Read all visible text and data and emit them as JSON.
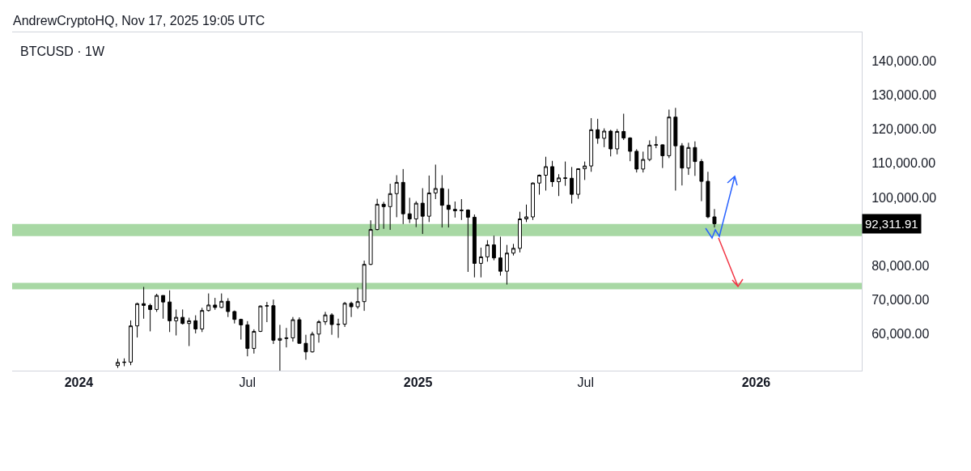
{
  "chart_data": {
    "type": "candlestick",
    "title": "BTCUSD · 1W",
    "annotations": [
      "AndrewCryptoHQ, Nov 17, 2025 19:05 UTC",
      "92,311.91"
    ],
    "color": "#000000",
    "x": [
      "2024-02-12",
      "2024-02-19",
      "2024-02-26",
      "2024-03-04",
      "2024-03-11",
      "2024-03-18",
      "2024-03-25",
      "2024-04-01",
      "2024-04-08",
      "2024-04-15",
      "2024-04-22",
      "2024-04-29",
      "2024-05-06",
      "2024-05-13",
      "2024-05-20",
      "2024-05-27",
      "2024-06-03",
      "2024-06-10",
      "2024-06-17",
      "2024-06-24",
      "2024-07-01",
      "2024-07-08",
      "2024-07-15",
      "2024-07-22",
      "2024-07-29",
      "2024-08-05",
      "2024-08-12",
      "2024-08-19",
      "2024-08-26",
      "2024-09-02",
      "2024-09-09",
      "2024-09-16",
      "2024-09-23",
      "2024-09-30",
      "2024-10-07",
      "2024-10-14",
      "2024-10-21",
      "2024-10-28",
      "2024-11-04",
      "2024-11-11",
      "2024-11-18",
      "2024-11-25",
      "2024-12-02",
      "2024-12-09",
      "2024-12-16",
      "2024-12-23",
      "2024-12-30",
      "2025-01-06",
      "2025-01-13",
      "2025-01-20",
      "2025-01-27",
      "2025-02-03",
      "2025-02-10",
      "2025-02-17",
      "2025-02-24",
      "2025-03-03",
      "2025-03-10",
      "2025-03-17",
      "2025-03-24",
      "2025-03-31",
      "2025-04-07",
      "2025-04-14",
      "2025-04-21",
      "2025-04-28",
      "2025-05-05",
      "2025-05-12",
      "2025-05-19",
      "2025-05-26",
      "2025-06-02",
      "2025-06-09",
      "2025-06-16",
      "2025-06-23",
      "2025-06-30",
      "2025-07-07",
      "2025-07-14",
      "2025-07-21",
      "2025-07-28",
      "2025-08-04",
      "2025-08-11",
      "2025-08-18",
      "2025-08-25",
      "2025-09-01",
      "2025-09-08",
      "2025-09-15",
      "2025-09-22",
      "2025-09-29",
      "2025-10-06",
      "2025-10-13",
      "2025-10-20",
      "2025-10-27",
      "2025-11-03",
      "2025-11-10",
      "2025-11-17"
    ],
    "ohlc": [
      [
        50800,
        52800,
        50100,
        51700
      ],
      [
        51700,
        52900,
        50600,
        51800
      ],
      [
        51800,
        64000,
        50900,
        62400
      ],
      [
        62400,
        69200,
        59000,
        68900
      ],
      [
        68900,
        73800,
        64500,
        68400
      ],
      [
        68400,
        68900,
        60800,
        67200
      ],
      [
        67200,
        71800,
        66500,
        71300
      ],
      [
        71300,
        71300,
        64500,
        69400
      ],
      [
        69400,
        72800,
        60600,
        63900
      ],
      [
        63900,
        67200,
        59600,
        64900
      ],
      [
        64900,
        67200,
        62800,
        63100
      ],
      [
        63100,
        64800,
        56500,
        63900
      ],
      [
        63900,
        65500,
        60200,
        61500
      ],
      [
        61500,
        67700,
        60600,
        66900
      ],
      [
        66900,
        71900,
        66600,
        68500
      ],
      [
        68500,
        70600,
        67100,
        67800
      ],
      [
        67800,
        71900,
        67600,
        69600
      ],
      [
        69600,
        70500,
        65000,
        66600
      ],
      [
        66600,
        66900,
        63100,
        64300
      ],
      [
        64300,
        64500,
        58400,
        62700
      ],
      [
        62700,
        63800,
        53500,
        55800
      ],
      [
        55800,
        61400,
        54300,
        60800
      ],
      [
        60800,
        68400,
        60600,
        68200
      ],
      [
        68200,
        69400,
        63500,
        68300
      ],
      [
        68300,
        70100,
        57100,
        58200
      ],
      [
        58200,
        62700,
        49000,
        58700
      ],
      [
        58700,
        61800,
        56100,
        58900
      ],
      [
        58900,
        65000,
        57800,
        64200
      ],
      [
        64200,
        64900,
        57200,
        57300
      ],
      [
        57300,
        59800,
        52500,
        54800
      ],
      [
        54800,
        60700,
        54600,
        60000
      ],
      [
        60000,
        64100,
        57500,
        63600
      ],
      [
        63600,
        66500,
        62700,
        65600
      ],
      [
        65600,
        66100,
        59800,
        62800
      ],
      [
        62800,
        64500,
        58900,
        62900
      ],
      [
        62900,
        69400,
        62100,
        69000
      ],
      [
        69000,
        69500,
        65000,
        68000
      ],
      [
        68000,
        73600,
        67400,
        69500
      ],
      [
        69500,
        81500,
        66800,
        80400
      ],
      [
        80400,
        93300,
        80200,
        90600
      ],
      [
        90600,
        99600,
        90400,
        98000
      ],
      [
        98000,
        98700,
        90800,
        97300
      ],
      [
        97300,
        104000,
        90500,
        101100
      ],
      [
        101100,
        106500,
        94200,
        104400
      ],
      [
        104400,
        108300,
        92200,
        95200
      ],
      [
        95200,
        99900,
        92500,
        93700
      ],
      [
        93700,
        98900,
        91300,
        98300
      ],
      [
        98300,
        102700,
        89300,
        94500
      ],
      [
        94500,
        106400,
        92800,
        101300
      ],
      [
        101300,
        109600,
        99500,
        102600
      ],
      [
        102600,
        106500,
        91200,
        97700
      ],
      [
        97700,
        102500,
        91200,
        96500
      ],
      [
        96500,
        98800,
        94100,
        96100
      ],
      [
        96100,
        99500,
        93400,
        96300
      ],
      [
        96300,
        96500,
        78200,
        94200
      ],
      [
        94200,
        95000,
        76600,
        80700
      ],
      [
        80700,
        85300,
        76600,
        82600
      ],
      [
        82600,
        87500,
        81200,
        86100
      ],
      [
        86100,
        88800,
        81600,
        82300
      ],
      [
        82300,
        88500,
        77100,
        78400
      ],
      [
        78400,
        86100,
        74500,
        83700
      ],
      [
        83700,
        86400,
        83000,
        85100
      ],
      [
        85100,
        95800,
        83900,
        93700
      ],
      [
        93700,
        97900,
        92800,
        94300
      ],
      [
        94300,
        104400,
        93400,
        104200
      ],
      [
        104200,
        106700,
        100800,
        106500
      ],
      [
        106500,
        111900,
        102000,
        109000
      ],
      [
        109000,
        110700,
        103100,
        104600
      ],
      [
        104600,
        106800,
        100400,
        105700
      ],
      [
        105700,
        110500,
        103400,
        105600
      ],
      [
        105600,
        108900,
        98200,
        100900
      ],
      [
        100900,
        108500,
        99600,
        108400
      ],
      [
        108400,
        110500,
        105100,
        109200
      ],
      [
        109200,
        123200,
        107500,
        119800
      ],
      [
        119800,
        123000,
        115700,
        117300
      ],
      [
        117300,
        120200,
        114700,
        119400
      ],
      [
        119400,
        119800,
        112000,
        114200
      ],
      [
        114200,
        120000,
        112600,
        119300
      ],
      [
        119300,
        124500,
        116800,
        117400
      ],
      [
        117400,
        117600,
        110600,
        113500
      ],
      [
        113500,
        114100,
        107300,
        108300
      ],
      [
        108300,
        113400,
        107300,
        111100
      ],
      [
        111100,
        116700,
        110600,
        115300
      ],
      [
        115300,
        117900,
        114400,
        115400
      ],
      [
        115400,
        115500,
        108600,
        112200
      ],
      [
        112200,
        125700,
        111500,
        123500
      ],
      [
        123500,
        126200,
        102000,
        115100
      ],
      [
        115100,
        115900,
        103500,
        108600
      ],
      [
        108600,
        116000,
        106600,
        114600
      ],
      [
        114600,
        116400,
        106300,
        110500
      ],
      [
        110500,
        111200,
        98900,
        104700
      ],
      [
        104700,
        107500,
        93900,
        94300
      ],
      [
        94300,
        96600,
        91200,
        92311.91
      ]
    ],
    "xlim": [
      "2023-10-21",
      "2026-04-25"
    ],
    "xticks": [
      {
        "value": "2024-01-01",
        "label": "2024"
      },
      {
        "value": "2024-07-01",
        "label": "Jul"
      },
      {
        "value": "2025-01-01",
        "label": "2025"
      },
      {
        "value": "2025-07-01",
        "label": "Jul"
      },
      {
        "value": "2026-01-01",
        "label": "2026"
      }
    ],
    "ylim": [
      49300,
      148300
    ],
    "yticks": [
      {
        "value": 60000,
        "label": "60,000.00"
      },
      {
        "value": 70000,
        "label": "70,000.00"
      },
      {
        "value": 80000,
        "label": "80,000.00"
      },
      {
        "value": 100000,
        "label": "100,000.00"
      },
      {
        "value": 110000,
        "label": "110,000.00"
      },
      {
        "value": 120000,
        "label": "120,000.00"
      },
      {
        "value": 130000,
        "label": "130,000.00"
      },
      {
        "value": 140000,
        "label": "140,000.00"
      }
    ],
    "bands": [
      {
        "axis": "y",
        "from": 88700,
        "to": 92200,
        "color": "#a8d8a4"
      },
      {
        "axis": "y",
        "from": 73100,
        "to": 75000,
        "color": "#a8d8a4"
      }
    ],
    "grid": false
  }
}
